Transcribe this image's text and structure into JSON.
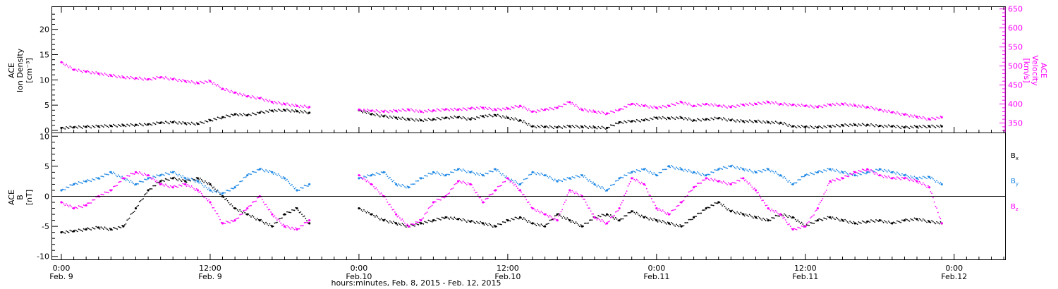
{
  "colors": {
    "black": "#000000",
    "magenta": "#ff00ff",
    "blue": "#1e88e5"
  },
  "x_axis": {
    "title": "hours:minutes, Feb.  8, 2015 - Feb. 12, 2015",
    "range_hours": [
      0,
      96
    ],
    "ticks": [
      {
        "hour": 0,
        "time": "0:00",
        "date": "Feb. 9"
      },
      {
        "hour": 12,
        "time": "12:00",
        "date": "Feb. 9"
      },
      {
        "hour": 24,
        "time": "0:00",
        "date": "Feb.10"
      },
      {
        "hour": 36,
        "time": "12:00",
        "date": "Feb.10"
      },
      {
        "hour": 48,
        "time": "0:00",
        "date": "Feb.11"
      },
      {
        "hour": 60,
        "time": "12:00",
        "date": "Feb.11"
      },
      {
        "hour": 72,
        "time": "0:00",
        "date": "Feb.12"
      }
    ]
  },
  "top_panel": {
    "left_label": [
      "ACE",
      "Ion Density",
      "[cm⁻³]"
    ],
    "right_label": [
      "ACE",
      "Velocity",
      "[km/s]"
    ]
  },
  "bottom_panel": {
    "left_label": [
      "ACE",
      "B",
      "[nT]"
    ],
    "legend": [
      {
        "label": "B",
        "sub": "x",
        "color": "#000000"
      },
      {
        "label": "B",
        "sub": "y",
        "color": "#1e88e5"
      },
      {
        "label": "B",
        "sub": "z",
        "color": "#ff00ff"
      }
    ]
  },
  "chart_data": [
    {
      "type": "scatter",
      "panel": "top",
      "xlabel": "hours:minutes, Feb.  8, 2015 - Feb. 12, 2015",
      "ylabel": "ACE Ion Density [cm⁻³]",
      "y2label": "ACE Velocity [km/s]",
      "ylim": [
        0,
        24
      ],
      "y2lim": [
        325,
        655
      ],
      "yticks": [
        0,
        5,
        10,
        15,
        20
      ],
      "y2ticks": [
        350,
        400,
        450,
        500,
        550,
        600,
        650
      ],
      "grid": false,
      "gap_hours": [
        20.8,
        23.7
      ],
      "series": [
        {
          "name": "Ion Density",
          "axis": "left",
          "color": "#000000",
          "x": [
            0,
            1,
            2,
            3,
            4,
            5,
            6,
            7,
            8,
            9,
            10,
            11,
            12,
            13,
            14,
            15,
            16,
            17,
            18,
            19,
            20,
            24,
            25,
            26,
            27,
            28,
            29,
            30,
            31,
            32,
            33,
            34,
            35,
            36,
            37,
            38,
            39,
            40,
            41,
            42,
            43,
            44,
            45,
            46,
            47,
            48,
            49,
            50,
            51,
            52,
            53,
            54,
            55,
            56,
            57,
            58,
            59,
            60,
            61,
            62,
            63,
            64,
            65,
            66,
            67,
            68,
            69,
            70,
            71
          ],
          "values": [
            0.5,
            0.6,
            0.7,
            0.8,
            0.9,
            1.0,
            1.1,
            1.2,
            1.5,
            1.6,
            1.4,
            1.3,
            2.0,
            2.6,
            3.2,
            3.0,
            3.5,
            3.9,
            4.0,
            3.8,
            3.5,
            4.0,
            3.2,
            2.8,
            2.5,
            2.2,
            2.0,
            2.2,
            2.5,
            2.6,
            2.2,
            2.8,
            3.0,
            2.5,
            2.0,
            0.8,
            0.7,
            0.6,
            0.8,
            0.7,
            0.6,
            0.5,
            1.6,
            1.8,
            2.0,
            2.5,
            2.4,
            2.5,
            2.0,
            2.2,
            2.4,
            2.0,
            1.8,
            1.8,
            1.6,
            1.5,
            0.8,
            0.7,
            0.6,
            0.8,
            1.0,
            1.1,
            1.1,
            0.9,
            0.8,
            0.6,
            0.7,
            0.8,
            0.8
          ]
        },
        {
          "name": "Velocity",
          "axis": "right",
          "color": "#ff00ff",
          "x": [
            0,
            1,
            2,
            3,
            4,
            5,
            6,
            7,
            8,
            9,
            10,
            11,
            12,
            13,
            14,
            15,
            16,
            17,
            18,
            19,
            20,
            24,
            25,
            26,
            27,
            28,
            29,
            30,
            31,
            32,
            33,
            34,
            35,
            36,
            37,
            38,
            39,
            40,
            41,
            42,
            43,
            44,
            45,
            46,
            47,
            48,
            49,
            50,
            51,
            52,
            53,
            54,
            55,
            56,
            57,
            58,
            59,
            60,
            61,
            62,
            63,
            64,
            65,
            66,
            67,
            68,
            69,
            70,
            71
          ],
          "values": [
            510,
            490,
            485,
            480,
            475,
            470,
            468,
            465,
            470,
            465,
            460,
            455,
            460,
            440,
            430,
            420,
            415,
            405,
            400,
            395,
            392,
            385,
            382,
            380,
            382,
            385,
            380,
            383,
            386,
            385,
            388,
            390,
            385,
            388,
            395,
            380,
            385,
            390,
            405,
            385,
            380,
            375,
            385,
            400,
            395,
            390,
            395,
            405,
            395,
            400,
            395,
            392,
            398,
            400,
            405,
            400,
            398,
            395,
            392,
            398,
            400,
            396,
            392,
            385,
            378,
            372,
            366,
            360,
            365
          ]
        }
      ]
    },
    {
      "type": "scatter",
      "panel": "bottom",
      "xlabel": "hours:minutes, Feb.  8, 2015 - Feb. 12, 2015",
      "ylabel": "ACE B [nT]",
      "ylim": [
        -10.5,
        10.5
      ],
      "yticks": [
        -10,
        -5,
        0,
        5,
        10
      ],
      "zero_line": true,
      "grid": false,
      "gap_hours": [
        20.8,
        23.7
      ],
      "series": [
        {
          "name": "Bx",
          "color": "#000000",
          "x": [
            0,
            1,
            2,
            3,
            4,
            5,
            6,
            7,
            8,
            9,
            10,
            11,
            12,
            13,
            14,
            15,
            16,
            17,
            18,
            19,
            20,
            24,
            25,
            26,
            27,
            28,
            29,
            30,
            31,
            32,
            33,
            34,
            35,
            36,
            37,
            38,
            39,
            40,
            41,
            42,
            43,
            44,
            45,
            46,
            47,
            48,
            49,
            50,
            51,
            52,
            53,
            54,
            55,
            56,
            57,
            58,
            59,
            60,
            61,
            62,
            63,
            64,
            65,
            66,
            67,
            68,
            69,
            70,
            71
          ],
          "values": [
            -6.0,
            -5.8,
            -5.5,
            -5.2,
            -5.5,
            -5.0,
            -2.0,
            1.0,
            2.5,
            3.0,
            2.5,
            3.0,
            2.0,
            0.0,
            -2.0,
            -3.0,
            -4.0,
            -5.0,
            -3.0,
            -2.0,
            -4.5,
            -2.0,
            -3.0,
            -4.0,
            -4.5,
            -5.0,
            -4.5,
            -4.0,
            -3.5,
            -3.8,
            -4.2,
            -4.5,
            -5.0,
            -4.0,
            -3.5,
            -4.5,
            -5.0,
            -3.0,
            -4.0,
            -5.0,
            -3.5,
            -3.0,
            -4.0,
            -2.5,
            -3.5,
            -4.0,
            -4.5,
            -5.0,
            -3.5,
            -2.0,
            -1.0,
            -2.5,
            -3.0,
            -3.5,
            -4.0,
            -3.0,
            -3.5,
            -5.0,
            -4.0,
            -3.5,
            -4.0,
            -4.5,
            -4.2,
            -4.0,
            -4.5,
            -4.0,
            -3.8,
            -4.2,
            -4.5
          ]
        },
        {
          "name": "By",
          "color": "#1e88e5",
          "x": [
            0,
            1,
            2,
            3,
            4,
            5,
            6,
            7,
            8,
            9,
            10,
            11,
            12,
            13,
            14,
            15,
            16,
            17,
            18,
            19,
            20,
            24,
            25,
            26,
            27,
            28,
            29,
            30,
            31,
            32,
            33,
            34,
            35,
            36,
            37,
            38,
            39,
            40,
            41,
            42,
            43,
            44,
            45,
            46,
            47,
            48,
            49,
            50,
            51,
            52,
            53,
            54,
            55,
            56,
            57,
            58,
            59,
            60,
            61,
            62,
            63,
            64,
            65,
            66,
            67,
            68,
            69,
            70,
            71
          ],
          "values": [
            1.0,
            2.0,
            2.5,
            3.0,
            4.0,
            3.0,
            2.0,
            3.0,
            3.5,
            4.0,
            3.0,
            2.5,
            1.0,
            0.5,
            1.5,
            3.5,
            4.5,
            4.0,
            3.0,
            1.0,
            2.0,
            3.0,
            3.5,
            4.0,
            2.0,
            1.5,
            3.0,
            4.0,
            3.5,
            4.5,
            4.0,
            3.5,
            4.5,
            3.0,
            2.0,
            4.0,
            3.5,
            2.5,
            3.0,
            3.5,
            2.0,
            1.0,
            3.0,
            4.0,
            4.5,
            3.5,
            5.0,
            4.5,
            4.0,
            3.5,
            4.5,
            5.0,
            4.5,
            4.0,
            4.5,
            3.5,
            2.0,
            3.5,
            4.0,
            4.5,
            4.0,
            3.5,
            4.0,
            4.5,
            4.0,
            3.5,
            3.0,
            3.2,
            2.0
          ]
        },
        {
          "name": "Bz",
          "color": "#ff00ff",
          "x": [
            0,
            1,
            2,
            3,
            4,
            5,
            6,
            7,
            8,
            9,
            10,
            11,
            12,
            13,
            14,
            15,
            16,
            17,
            18,
            19,
            20,
            24,
            25,
            26,
            27,
            28,
            29,
            30,
            31,
            32,
            33,
            34,
            35,
            36,
            37,
            38,
            39,
            40,
            41,
            42,
            43,
            44,
            45,
            46,
            47,
            48,
            49,
            50,
            51,
            52,
            53,
            54,
            55,
            56,
            57,
            58,
            59,
            60,
            61,
            62,
            63,
            64,
            65,
            66,
            67,
            68,
            69,
            70,
            71
          ],
          "values": [
            -1.0,
            -2.0,
            -1.5,
            0.0,
            1.0,
            3.0,
            4.0,
            3.5,
            2.0,
            1.5,
            2.0,
            1.0,
            -1.0,
            -4.5,
            -4.0,
            -2.0,
            0.0,
            -3.0,
            -5.0,
            -5.5,
            -4.0,
            3.5,
            2.0,
            0.0,
            -3.0,
            -5.0,
            -4.0,
            -1.0,
            0.0,
            2.5,
            2.0,
            -1.0,
            1.0,
            3.0,
            1.0,
            -2.0,
            -3.0,
            -4.0,
            1.0,
            0.0,
            -3.5,
            -4.5,
            -2.0,
            3.0,
            2.0,
            -2.0,
            -3.0,
            -1.0,
            1.5,
            3.0,
            2.5,
            2.0,
            3.0,
            1.0,
            -2.0,
            -3.0,
            -5.5,
            -5.0,
            -2.0,
            2.5,
            3.0,
            4.0,
            4.5,
            3.5,
            3.0,
            3.0,
            2.5,
            1.5,
            -4.5
          ]
        }
      ]
    }
  ]
}
